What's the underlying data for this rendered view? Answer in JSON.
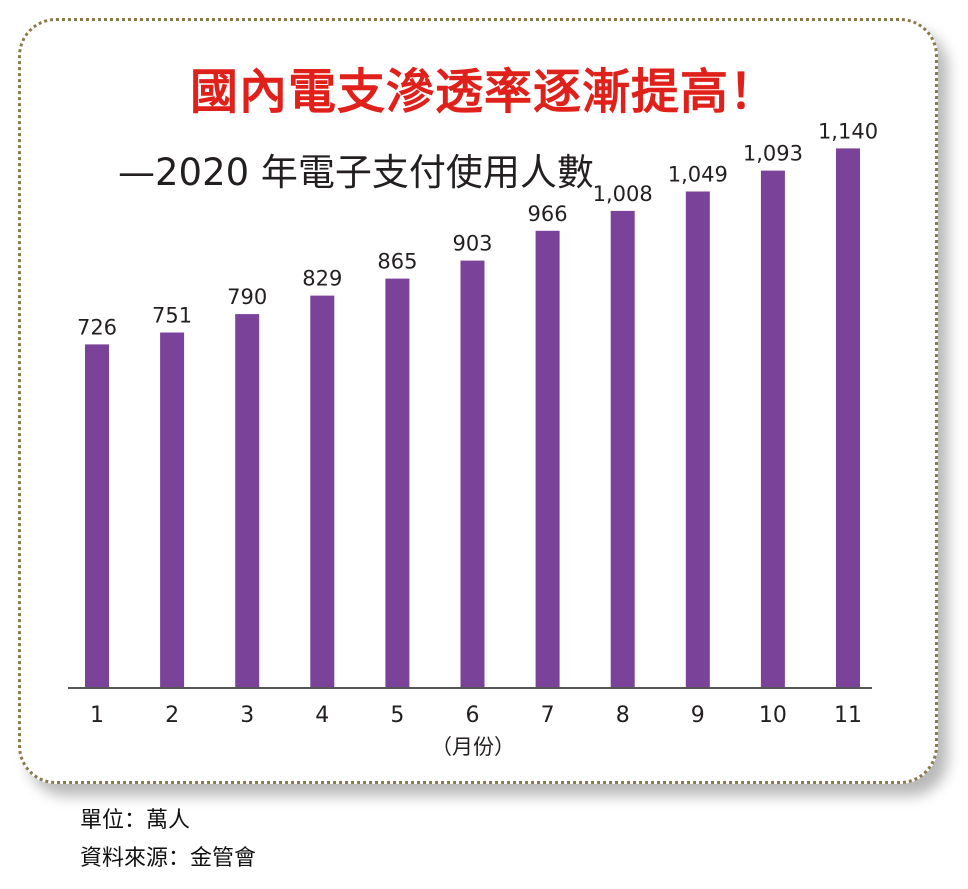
{
  "chart_data": {
    "type": "bar",
    "title": "國內電支滲透率逐漸提高！",
    "subtitle": "—2020 年電子支付使用人數",
    "categories": [
      "1",
      "2",
      "3",
      "4",
      "5",
      "6",
      "7",
      "8",
      "9",
      "10",
      "11"
    ],
    "values": [
      726,
      751,
      790,
      829,
      865,
      903,
      966,
      1008,
      1049,
      1093,
      1140
    ],
    "value_labels": [
      "726",
      "751",
      "790",
      "829",
      "865",
      "903",
      "966",
      "1,008",
      "1,049",
      "1,093",
      "1,140"
    ],
    "xlabel": "（月份）",
    "ylabel": "",
    "ylim": [
      0,
      1200
    ],
    "grid": false,
    "legend": "none",
    "colors": {
      "bar": "#7b4299",
      "title": "#e0201b",
      "text": "#231f20",
      "axis": "#555555",
      "border": "#8a7a4a"
    }
  },
  "footnotes": {
    "unit": "單位：萬人",
    "source": "資料來源：金管會"
  }
}
